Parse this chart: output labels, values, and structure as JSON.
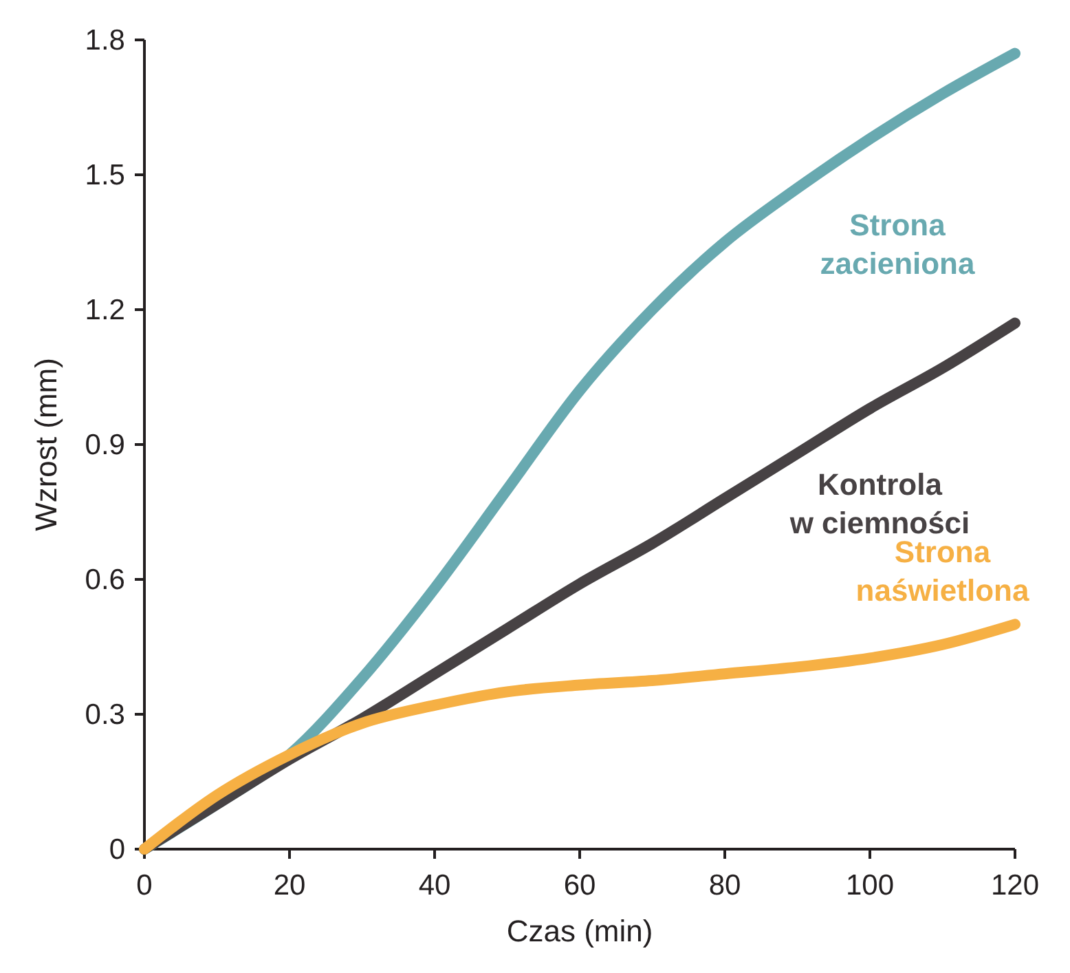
{
  "chart_data": {
    "type": "line",
    "xlabel": "Czas (min)",
    "ylabel": "Wzrost (mm)",
    "xlim": [
      0,
      120
    ],
    "xticks": [
      0,
      20,
      40,
      60,
      80,
      100,
      120
    ],
    "ylim": [
      0,
      1.8
    ],
    "yticks": [
      {
        "value": 0,
        "label": "0"
      },
      {
        "value": 0.3,
        "label": "0.3"
      },
      {
        "value": 0.6,
        "label": "0.6"
      },
      {
        "value": 0.9,
        "label": "0.9"
      },
      {
        "value": 1.2,
        "label": "1.2"
      },
      {
        "value": 1.5,
        "label": "1.5"
      },
      {
        "value": 1.8,
        "label": "1.8"
      }
    ],
    "x": [
      0,
      10,
      20,
      30,
      40,
      50,
      60,
      70,
      80,
      90,
      100,
      110,
      120
    ],
    "grid": false,
    "legend": false,
    "marker": "none",
    "line_style": "solid",
    "series": [
      {
        "name": "Strona zacieniona",
        "color": "#68a9b0",
        "values": [
          0,
          0.1,
          0.21,
          0.38,
          0.58,
          0.8,
          1.02,
          1.2,
          1.35,
          1.47,
          1.58,
          1.68,
          1.77
        ]
      },
      {
        "name": "Kontrola w ciemności",
        "color": "#474244",
        "values": [
          0,
          0.1,
          0.2,
          0.29,
          0.39,
          0.49,
          0.59,
          0.68,
          0.78,
          0.88,
          0.98,
          1.07,
          1.17
        ]
      },
      {
        "name": "Strona naświetlona",
        "color": "#f6b044",
        "values": [
          0,
          0.12,
          0.21,
          0.28,
          0.32,
          0.35,
          0.365,
          0.375,
          0.39,
          0.405,
          0.425,
          0.455,
          0.5
        ]
      }
    ]
  }
}
